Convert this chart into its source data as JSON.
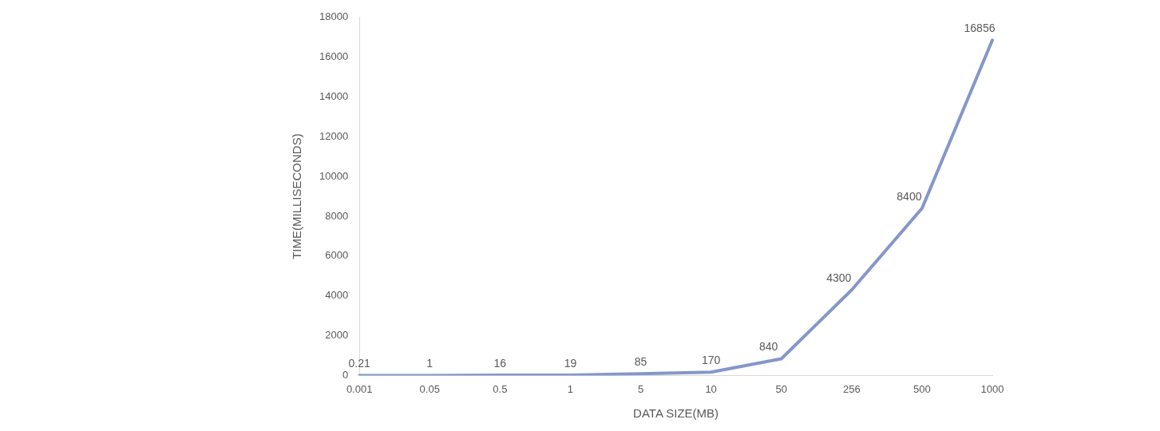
{
  "chart_data": {
    "type": "line",
    "xlabel": "DATA SIZE(MB)",
    "ylabel": "TIME(MILLISECONDS)",
    "categories": [
      "0.001",
      "0.05",
      "0.5",
      "1",
      "5",
      "10",
      "50",
      "256",
      "500",
      "1000"
    ],
    "series": [
      {
        "color": "#8497c8",
        "values": [
          0.21,
          1,
          16,
          19,
          85,
          170,
          840,
          4300,
          8400,
          16856
        ]
      }
    ],
    "ylim": [
      0,
      18000
    ],
    "yticks": [
      0,
      2000,
      4000,
      6000,
      8000,
      10000,
      12000,
      14000,
      16000,
      18000
    ],
    "grid": false,
    "legend": false,
    "marker": "none",
    "line_style": "solid",
    "data_labels": true
  }
}
